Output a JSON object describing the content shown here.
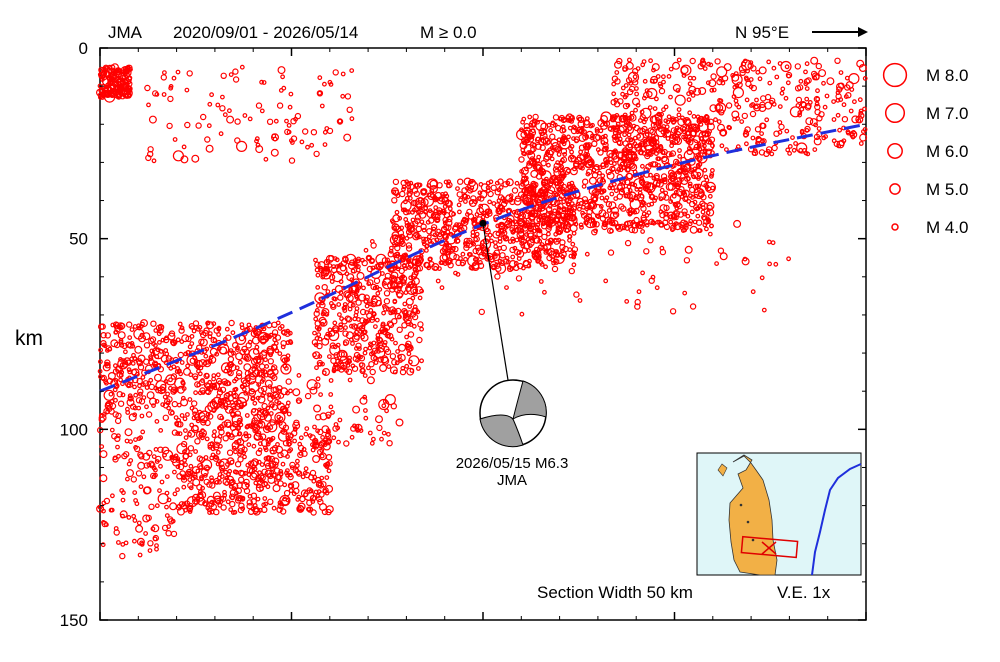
{
  "header": {
    "agency": "JMA",
    "period": "2020/09/01 - 2026/05/14",
    "magnitude_filter": "M ≥ 0.0",
    "direction": "N 95°E"
  },
  "chart_data": {
    "type": "scatter",
    "ylabel": "km",
    "ylim": [
      0,
      150
    ],
    "y_inverted": true,
    "yticks": [
      0,
      50,
      100,
      150
    ],
    "colors": {
      "events": "#ff0000",
      "plate_boundary": "#1f2fdc",
      "mechanism_fill": "#a0a0a0"
    },
    "legend": {
      "placement": "right",
      "entries": [
        {
          "label": "M 8.0",
          "magnitude": 8.0
        },
        {
          "label": "M 7.0",
          "magnitude": 7.0
        },
        {
          "label": "M 6.0",
          "magnitude": 6.0
        },
        {
          "label": "M 5.0",
          "magnitude": 5.0
        },
        {
          "label": "M 4.0",
          "magnitude": 4.0
        }
      ]
    },
    "plate_boundary": {
      "style": "dashed",
      "points": [
        [
          0,
          90
        ],
        [
          0.25,
          70
        ],
        [
          0.5,
          45
        ],
        [
          0.75,
          30
        ],
        [
          1.0,
          20
        ]
      ]
    },
    "mainshock": {
      "date": "2026/05/15",
      "magnitude": 6.3,
      "label": "2026/05/15 M6.3",
      "source": "JMA",
      "depth_km": 46,
      "x_fraction": 0.5
    },
    "clusters": [
      {
        "x": [
          0.0,
          0.04
        ],
        "depth": [
          5,
          13
        ],
        "count": 160
      },
      {
        "x": [
          0.06,
          0.33
        ],
        "depth": [
          5,
          30
        ],
        "count": 110
      },
      {
        "x": [
          0.0,
          0.25
        ],
        "depth": [
          72,
          98
        ],
        "count": 650
      },
      {
        "x": [
          0.28,
          0.42
        ],
        "depth": [
          55,
          85
        ],
        "count": 450
      },
      {
        "x": [
          0.1,
          0.3
        ],
        "depth": [
          98,
          122
        ],
        "count": 500
      },
      {
        "x": [
          0.38,
          0.62
        ],
        "depth": [
          35,
          58
        ],
        "count": 700
      },
      {
        "x": [
          0.55,
          0.8
        ],
        "depth": [
          18,
          48
        ],
        "count": 1000
      },
      {
        "x": [
          0.67,
          1.0
        ],
        "depth": [
          3,
          28
        ],
        "count": 420
      },
      {
        "x": [
          0.0,
          0.1
        ],
        "depth": [
          100,
          135
        ],
        "count": 130
      },
      {
        "x": [
          0.3,
          0.9
        ],
        "depth": [
          45,
          70
        ],
        "count": 90
      },
      {
        "x": [
          0.25,
          0.4
        ],
        "depth": [
          85,
          105
        ],
        "count": 70
      }
    ],
    "inset_map": {
      "caption_width": "Section Width 50 km",
      "caption_ve": "V.E.  1x"
    }
  }
}
